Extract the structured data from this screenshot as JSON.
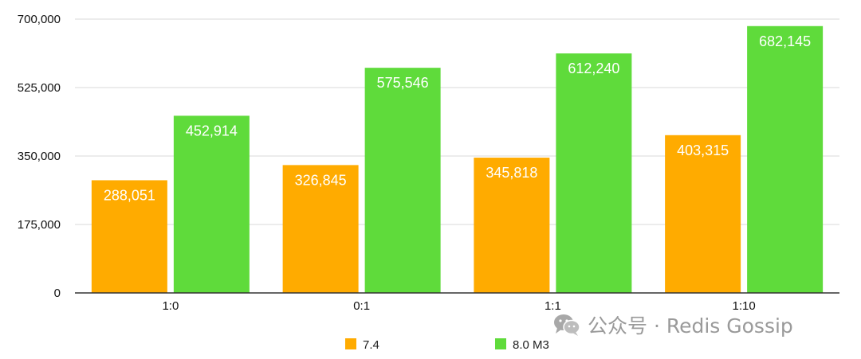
{
  "chart_data": {
    "type": "bar",
    "categories": [
      "1:0",
      "0:1",
      "1:1",
      "1:10"
    ],
    "series": [
      {
        "name": "7.4",
        "color": "#FFAB00",
        "values": [
          288051,
          326845,
          345818,
          403315
        ],
        "labels": [
          "288,051",
          "326,845",
          "345,818",
          "403,315"
        ]
      },
      {
        "name": "8.0 M3",
        "color": "#5FDB3B",
        "values": [
          452914,
          575546,
          612240,
          682145
        ],
        "labels": [
          "452,914",
          "575,546",
          "612,240",
          "682,145"
        ]
      }
    ],
    "ylim": [
      0,
      700000
    ],
    "yticks": [
      0,
      175000,
      350000,
      525000,
      700000
    ],
    "ytick_labels": [
      "0",
      "175,000",
      "350,000",
      "525,000",
      "700,000"
    ],
    "grid": true,
    "legend": "bottom-center",
    "title": "",
    "xlabel": "",
    "ylabel": ""
  },
  "watermark": {
    "text": "公众号 · Redis Gossip",
    "icon": "wechat-icon"
  }
}
